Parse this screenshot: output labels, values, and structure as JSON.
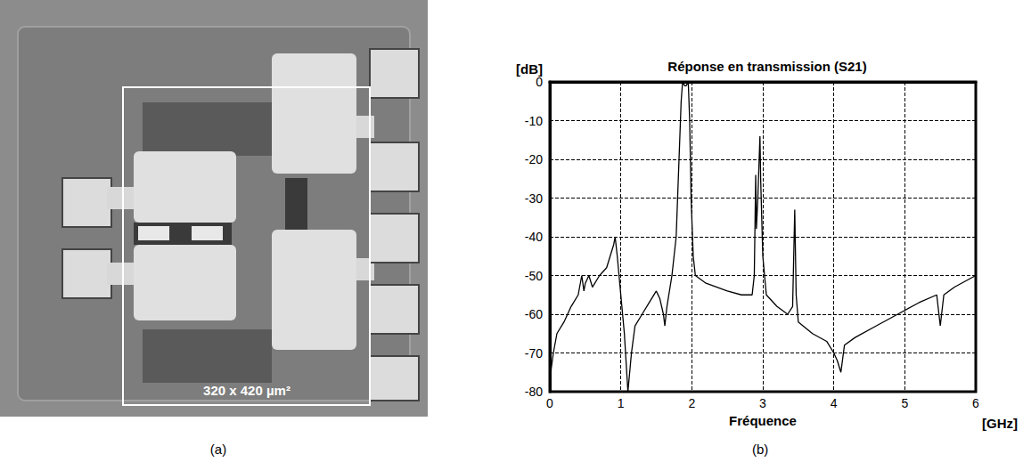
{
  "chart_data": {
    "type": "line",
    "title": "Réponse en transmission (S21)",
    "ylabel": "[dB]",
    "xlabel": "Fréquence",
    "x_unit": "[GHz]",
    "panel_label": "(b)",
    "xlim": [
      0,
      6
    ],
    "xticks": [
      0,
      1,
      2,
      3,
      4,
      5,
      6
    ],
    "ylim": [
      -80,
      0
    ],
    "yticks": [
      -80,
      -70,
      -60,
      -50,
      -40,
      -30,
      -20,
      -10,
      0
    ],
    "grid": true,
    "color": "#000000",
    "x": [
      0,
      0.02,
      0.05,
      0.1,
      0.2,
      0.3,
      0.4,
      0.45,
      0.48,
      0.5,
      0.55,
      0.6,
      0.7,
      0.8,
      0.85,
      0.9,
      0.92,
      0.95,
      1.0,
      1.05,
      1.1,
      1.15,
      1.2,
      1.3,
      1.4,
      1.5,
      1.55,
      1.6,
      1.62,
      1.65,
      1.72,
      1.78,
      1.82,
      1.85,
      1.87,
      1.9,
      1.92,
      1.95,
      1.97,
      1.99,
      2.02,
      2.05,
      2.2,
      2.5,
      2.7,
      2.85,
      2.88,
      2.9,
      2.91,
      2.93,
      2.96,
      2.97,
      3.0,
      3.05,
      3.2,
      3.35,
      3.42,
      3.45,
      3.47,
      3.5,
      3.7,
      3.9,
      4.0,
      4.05,
      4.1,
      4.15,
      4.3,
      4.6,
      4.9,
      5.2,
      5.45,
      5.5,
      5.55,
      5.7,
      6.0
    ],
    "values": [
      -80,
      -74,
      -70,
      -65,
      -62,
      -58,
      -55,
      -50,
      -54,
      -52,
      -50,
      -53,
      -50,
      -48,
      -45,
      -42,
      -40,
      -45,
      -55,
      -65,
      -80,
      -70,
      -63,
      -60,
      -57,
      -54,
      -56,
      -60,
      -63,
      -58,
      -50,
      -40,
      -20,
      -5,
      0,
      -1,
      -1,
      0,
      -10,
      -30,
      -45,
      -50,
      -52,
      -54,
      -55,
      -55,
      -50,
      -24,
      -38,
      -30,
      -14,
      -25,
      -45,
      -55,
      -58,
      -60,
      -58,
      -33,
      -55,
      -62,
      -65,
      -67,
      -70,
      -72,
      -75,
      -68,
      -66,
      -63,
      -60,
      -57,
      -55,
      -63,
      -55,
      -53,
      -50
    ]
  },
  "micrograph": {
    "panel_label": "(a)",
    "size_label": "320 x 420 µm²"
  }
}
